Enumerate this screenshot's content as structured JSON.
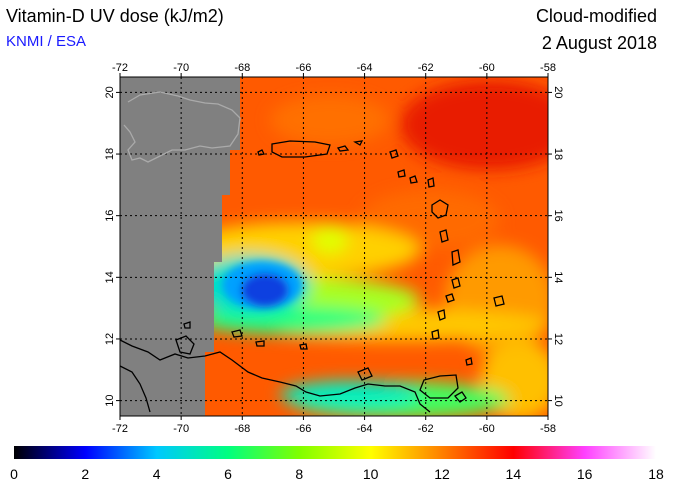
{
  "title": "Vitamin-D UV dose (kJ/m2)",
  "credit": "KNMI / ESA",
  "subtitle": "Cloud-modified",
  "date": "2 August 2018",
  "map": {
    "lon_range": [
      -72,
      -58
    ],
    "lat_range": [
      9.5,
      20.5
    ],
    "lon_ticks": [
      "-72",
      "-70",
      "-68",
      "-66",
      "-64",
      "-62",
      "-60",
      "-58"
    ],
    "lat_ticks": [
      "10",
      "12",
      "14",
      "16",
      "18",
      "20"
    ],
    "grid": true,
    "no_data_color": "#808080"
  },
  "colorbar": {
    "min": 0,
    "max": 18,
    "labels": [
      "0",
      "2",
      "4",
      "6",
      "8",
      "10",
      "12",
      "14",
      "16",
      "18"
    ],
    "colors": [
      "#000000",
      "#0000ff",
      "#00c8ff",
      "#00ff80",
      "#80ff00",
      "#ffff00",
      "#ff8000",
      "#ff0000",
      "#ff40ff",
      "#ffffff"
    ]
  }
}
